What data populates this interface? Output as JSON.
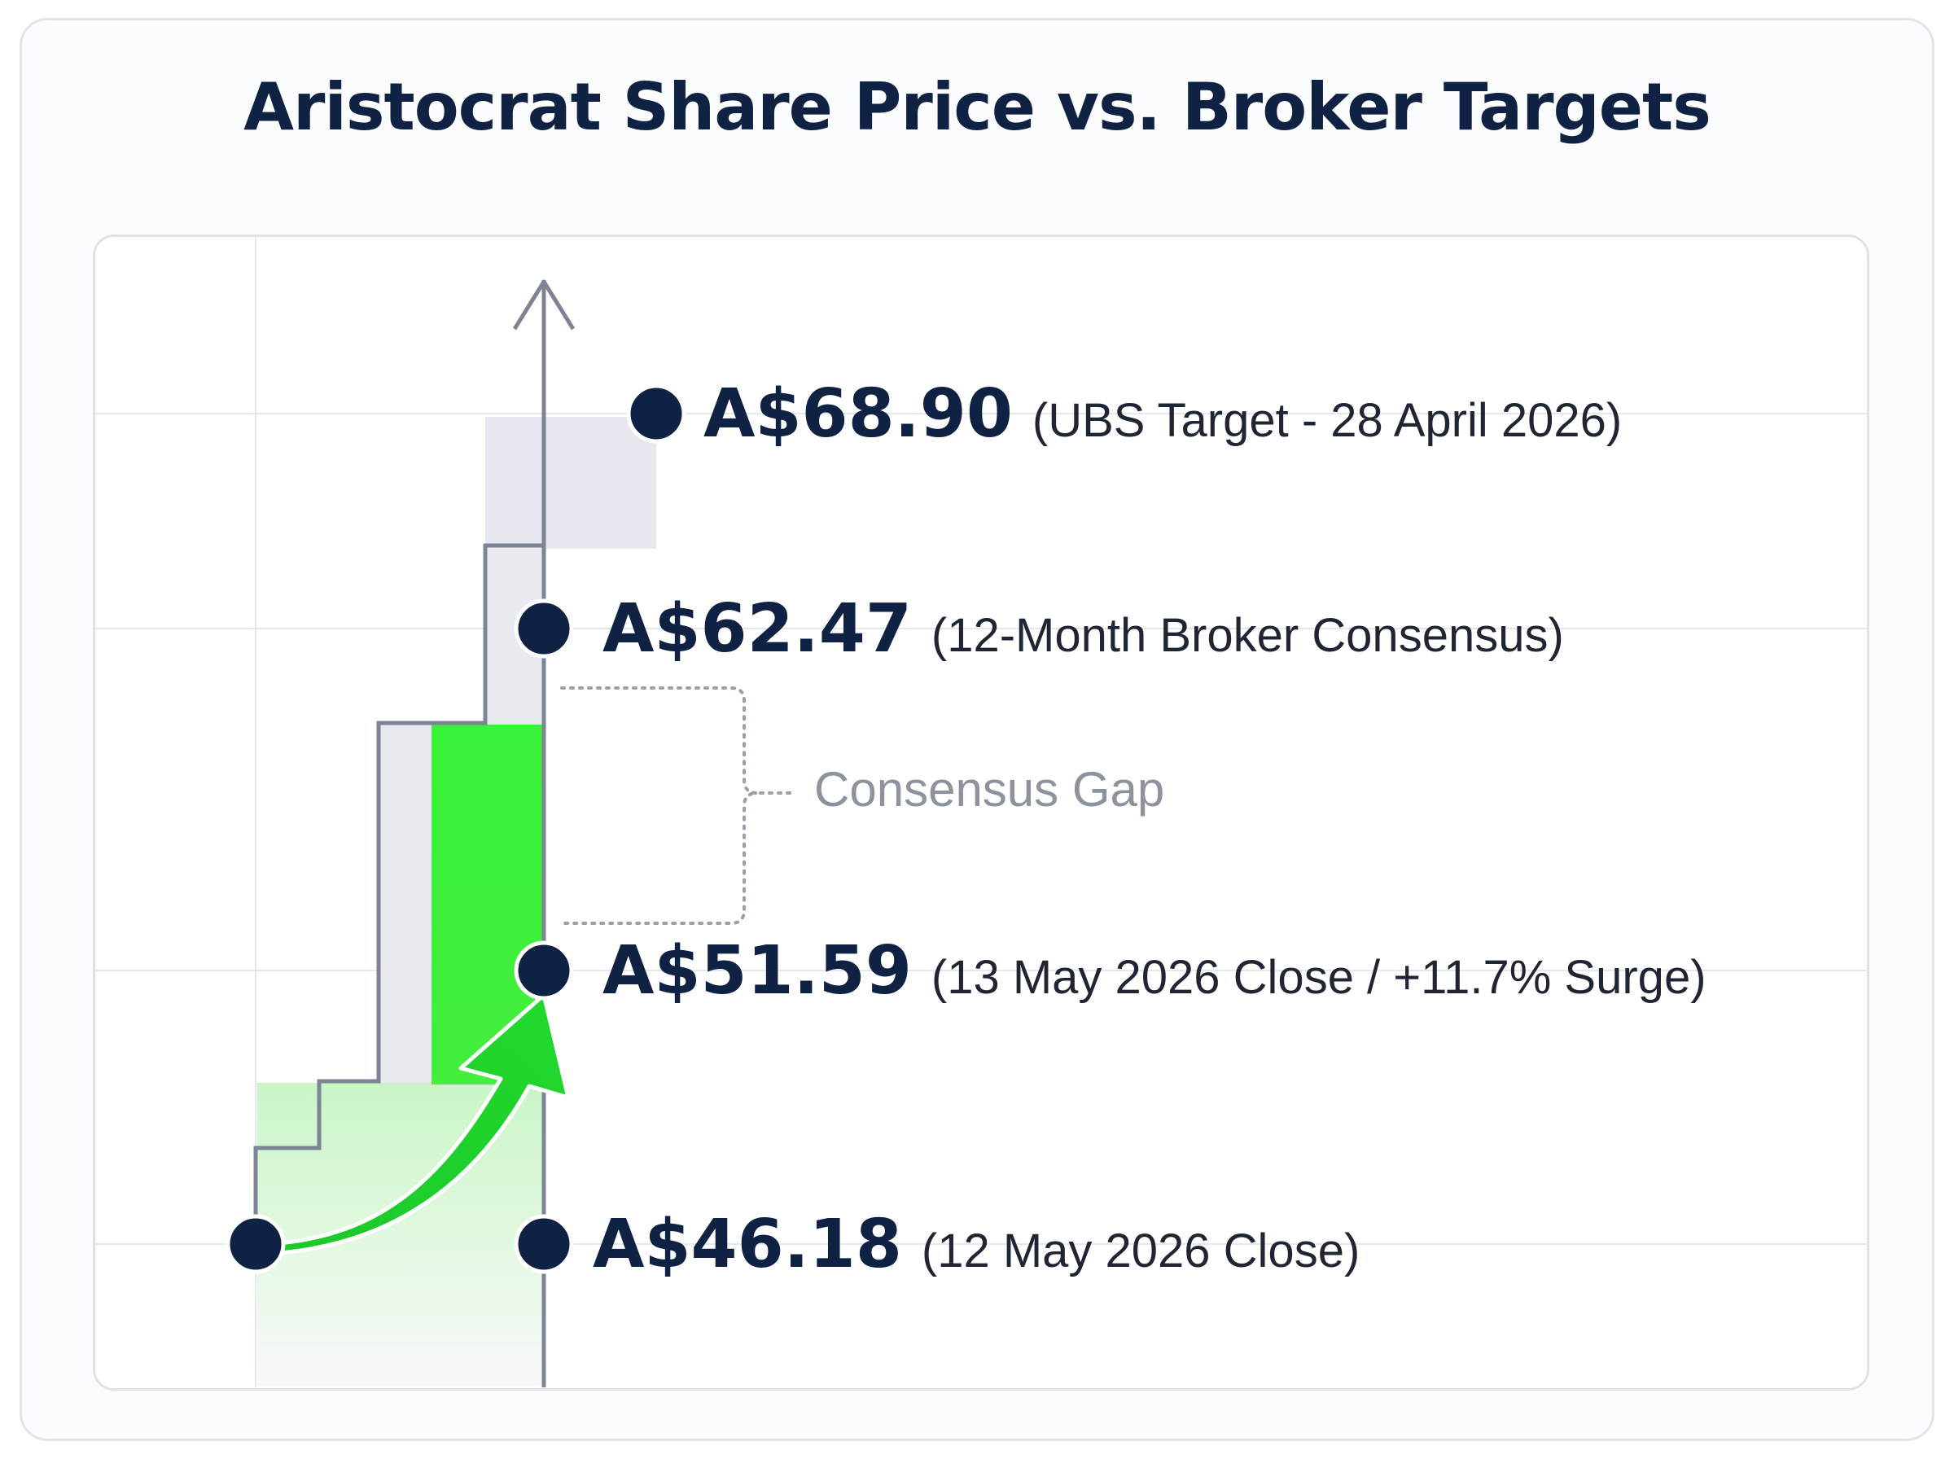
{
  "title": "Aristocrat Share Price vs. Broker Targets",
  "colors": {
    "navy": "#0f2244",
    "green": "#2ee23a",
    "axis": "#7d8594",
    "gap_label": "#8d939c"
  },
  "chart_data": {
    "type": "annotated-levels",
    "title": "Aristocrat Share Price vs. Broker Targets",
    "unit": "A$",
    "points": [
      {
        "value": 68.9,
        "value_label": "A$68.90",
        "note": "(UBS Target - 28 April 2026)"
      },
      {
        "value": 62.47,
        "value_label": "A$62.47",
        "note": "(12-Month Broker Consensus)"
      },
      {
        "value": 51.59,
        "value_label": "A$51.59",
        "note": "(13 May 2026 Close / +11.7% Surge)"
      },
      {
        "value": 46.18,
        "value_label": "A$46.18",
        "note": "(12 May 2026 Close)"
      }
    ],
    "annotation": "Consensus Gap",
    "grid": true
  }
}
